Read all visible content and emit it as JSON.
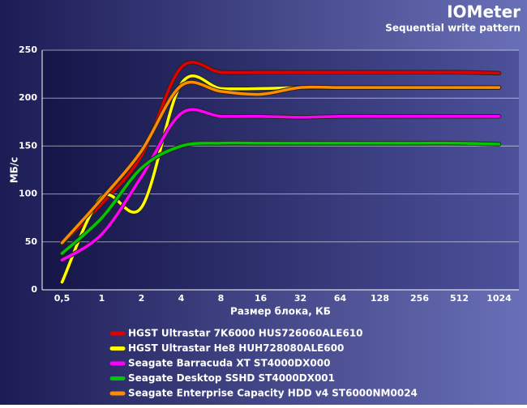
{
  "chart_data": {
    "type": "line",
    "title": "IOMeter",
    "subtitle": "Sequential write pattern",
    "x_label": "Размер блока, КБ",
    "y_label": "МБ/с",
    "categories": [
      "0,5",
      "1",
      "2",
      "4",
      "8",
      "16",
      "32",
      "64",
      "128",
      "256",
      "512",
      "1024"
    ],
    "ylim": [
      0,
      250
    ],
    "yticks": [
      0,
      50,
      100,
      150,
      200,
      250
    ],
    "grid": true,
    "legend": "bottom",
    "series": [
      {
        "name": "HGST Ultrastar 7K6000 HUS726060ALE610",
        "color": "#e00000",
        "values": [
          48,
          90,
          140,
          232,
          227,
          227,
          227,
          227,
          227,
          227,
          227,
          226
        ]
      },
      {
        "name": "HGST Ultrastar He8 HUH728080ALE600",
        "color": "#ffff00",
        "values": [
          8,
          97,
          86,
          215,
          210,
          210,
          211,
          211,
          211,
          211,
          211,
          211
        ]
      },
      {
        "name": "Seagate Barracuda XT ST4000DX000",
        "color": "#ff00ff",
        "values": [
          31,
          58,
          118,
          184,
          181,
          181,
          180,
          181,
          181,
          181,
          181,
          181
        ]
      },
      {
        "name": "Seagate Desktop SSHD ST4000DX001",
        "color": "#00c800",
        "values": [
          38,
          75,
          127,
          150,
          153,
          153,
          153,
          153,
          153,
          153,
          153,
          152
        ]
      },
      {
        "name": "Seagate Enterprise Capacity HDD v4 ST6000NM0024",
        "color": "#ff8c00",
        "values": [
          49,
          95,
          145,
          213,
          207,
          204,
          211,
          211,
          211,
          211,
          211,
          211
        ]
      }
    ]
  }
}
